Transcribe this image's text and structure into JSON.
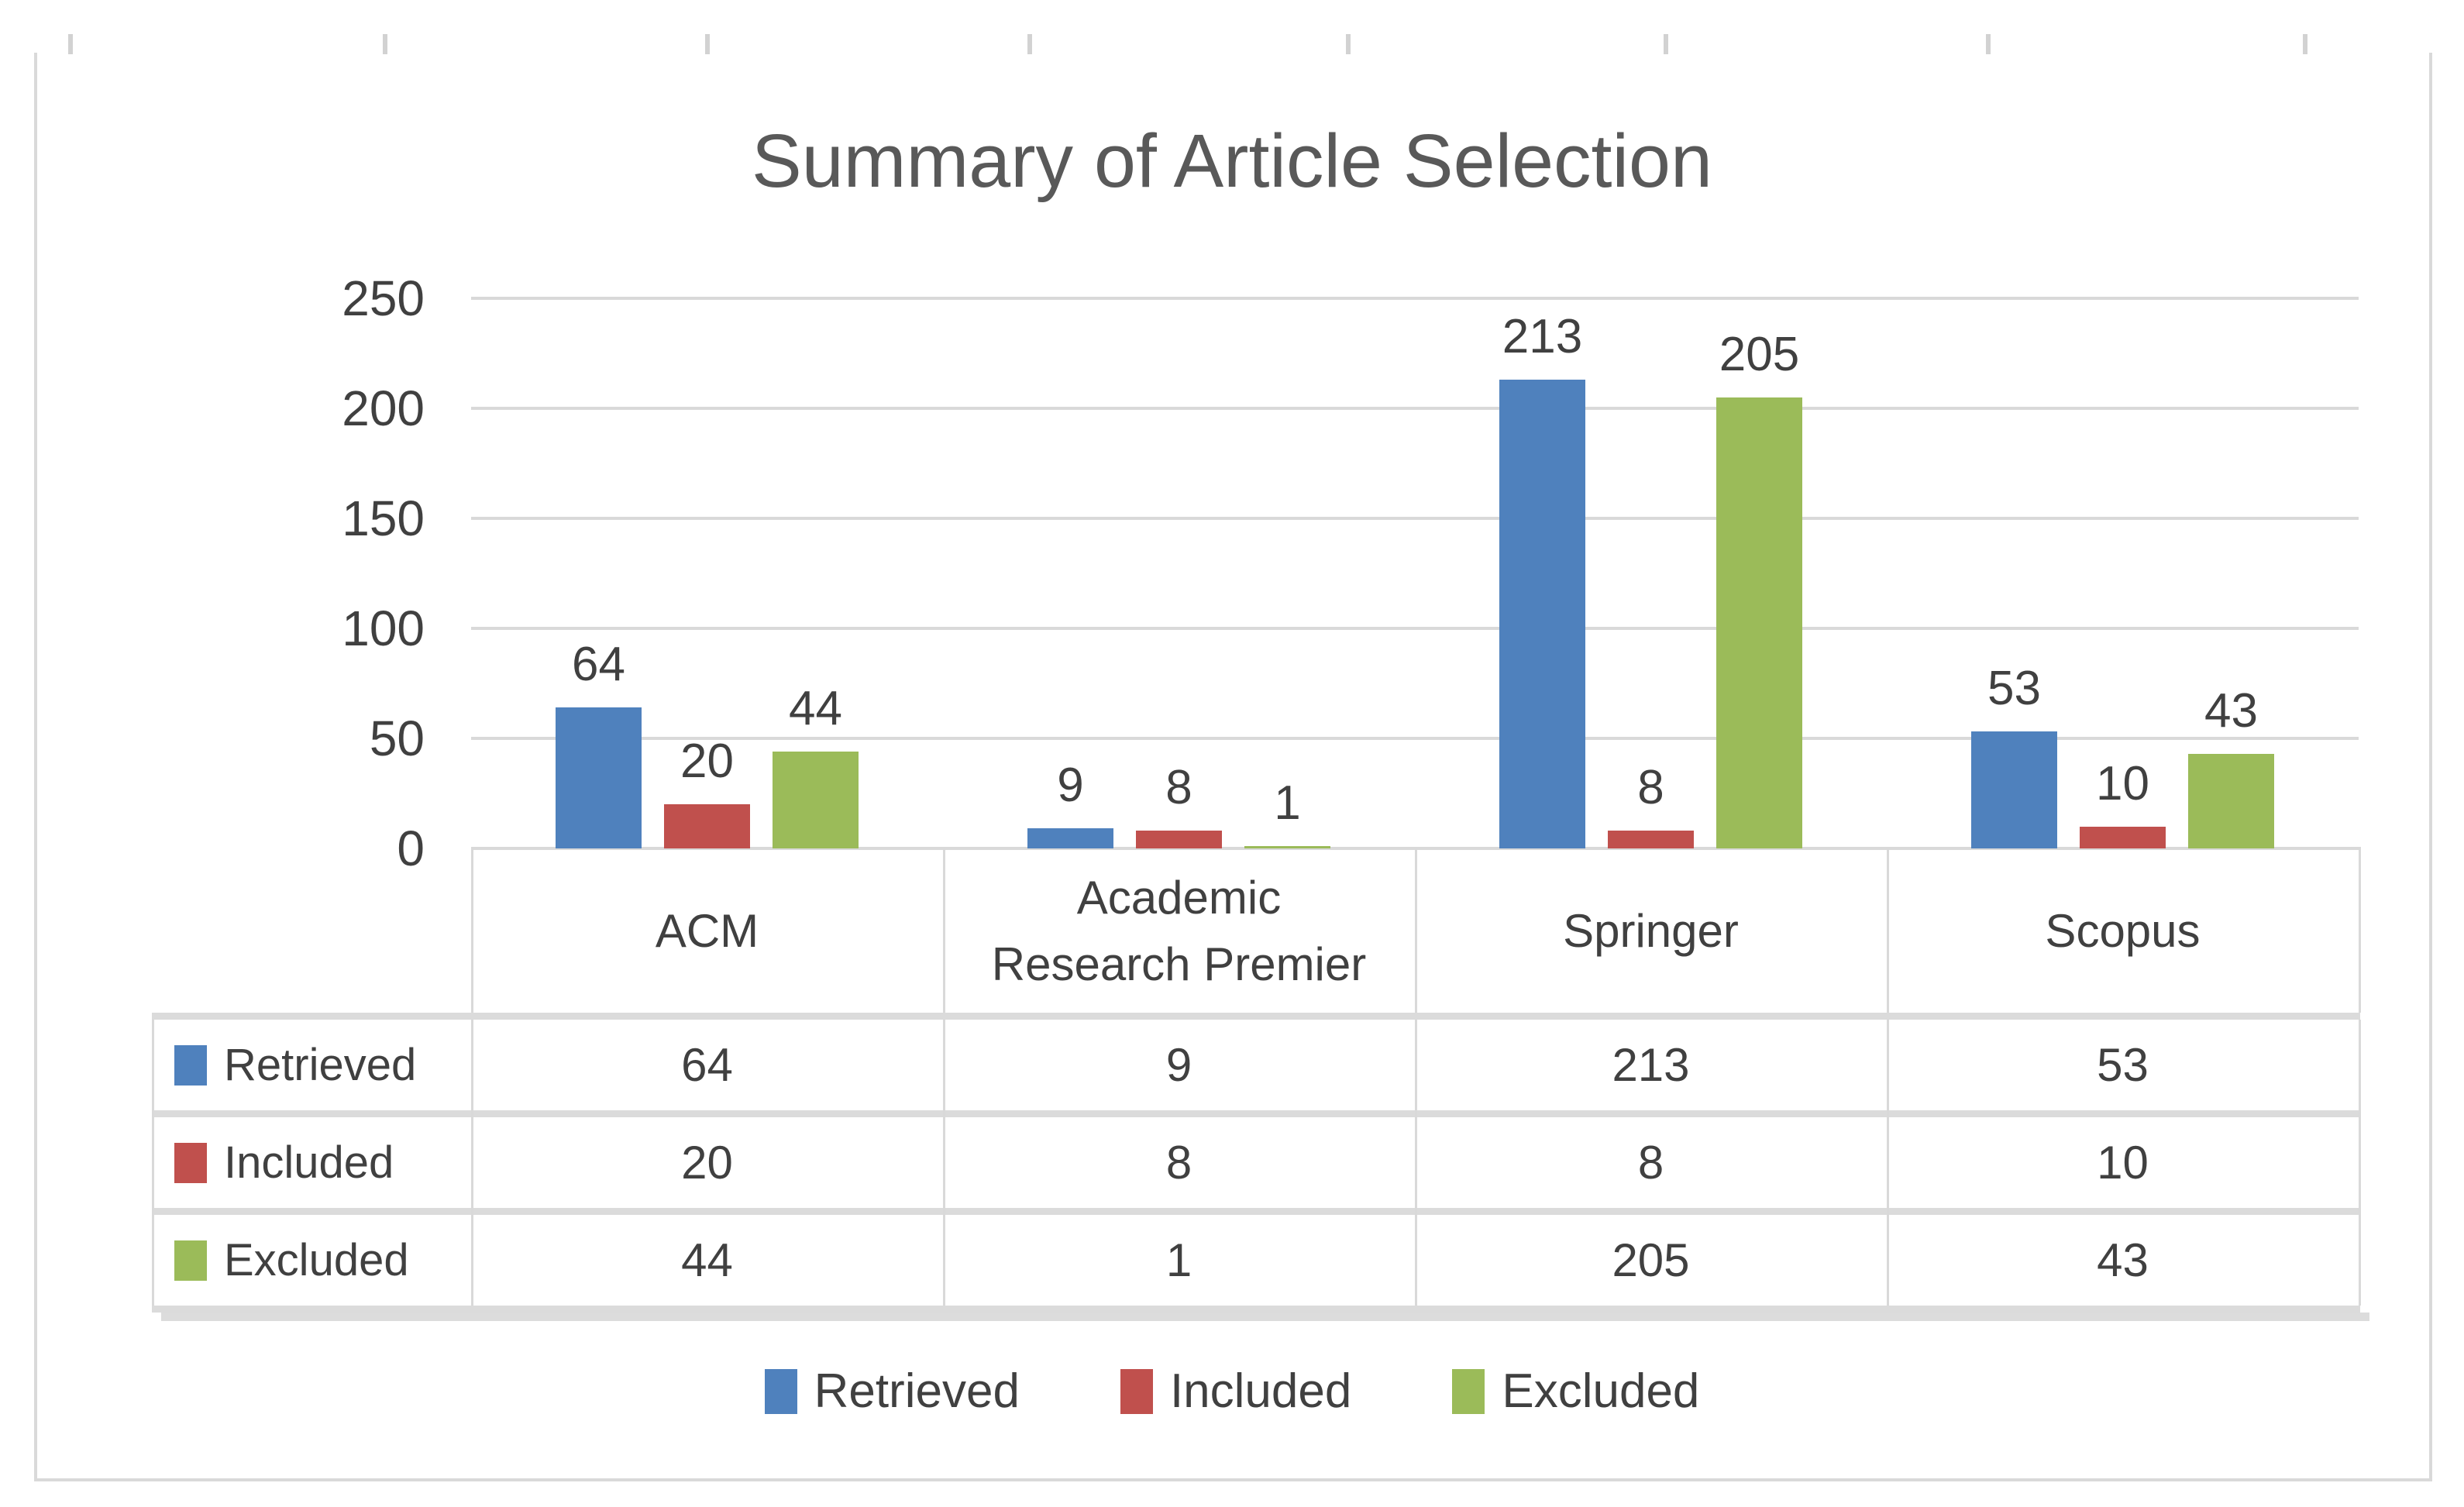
{
  "chart_data": {
    "type": "bar",
    "title": "Summary of Article Selection",
    "categories": [
      "ACM",
      "Academic Research Premier",
      "Springer",
      "Scopus"
    ],
    "series": [
      {
        "name": "Retrieved",
        "color": "#4F81BD",
        "values": [
          64,
          9,
          213,
          53
        ]
      },
      {
        "name": "Included",
        "color": "#C0504D",
        "values": [
          20,
          8,
          8,
          10
        ]
      },
      {
        "name": "Excluded",
        "color": "#9BBB59",
        "values": [
          44,
          1,
          205,
          43
        ]
      }
    ],
    "xlabel": "",
    "ylabel": "",
    "ylim": [
      0,
      250
    ],
    "yticks": [
      0,
      50,
      100,
      150,
      200,
      250
    ],
    "grid": true,
    "data_labels": true,
    "data_table_shown": true,
    "legend_position": "bottom"
  },
  "style_colors": {
    "gridline": "#D9D9D9",
    "frame_border": "#D9D9D9",
    "top_band": "#DBDBDB",
    "title_text": "#595959",
    "body_text": "#404040",
    "table_separator": "#DBDBDB"
  }
}
